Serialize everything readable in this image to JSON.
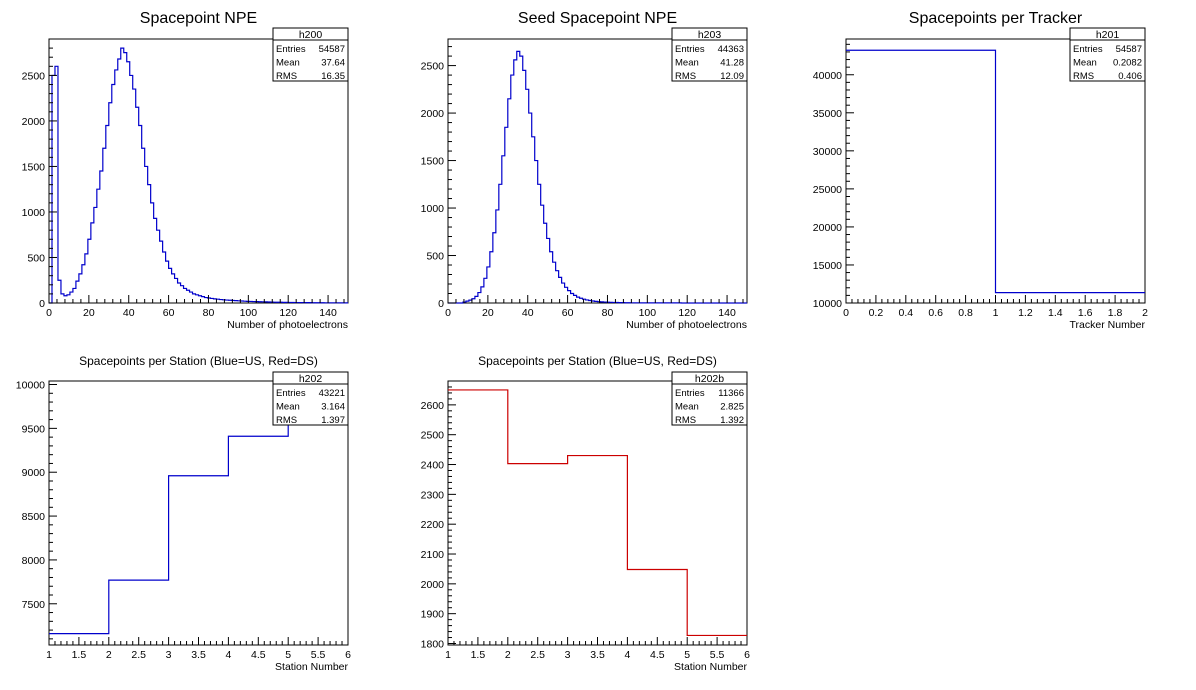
{
  "chart_data": [
    {
      "id": "h200",
      "type": "histogram",
      "title": "Spacepoint NPE",
      "xlabel": "Number of photoelectrons",
      "ylabel": "",
      "xlim": [
        0,
        150
      ],
      "ylim": [
        0,
        2900
      ],
      "xticks": [
        0,
        20,
        40,
        60,
        80,
        100,
        120,
        140
      ],
      "yticks": [
        0,
        500,
        1000,
        1500,
        2000,
        2500
      ],
      "bin_width": 1.5,
      "values": [
        0,
        2500,
        2600,
        250,
        100,
        80,
        90,
        120,
        160,
        240,
        320,
        420,
        540,
        700,
        880,
        1050,
        1250,
        1450,
        1700,
        1950,
        2200,
        2400,
        2560,
        2680,
        2800,
        2750,
        2650,
        2500,
        2350,
        2150,
        1950,
        1700,
        1500,
        1300,
        1100,
        930,
        800,
        680,
        560,
        460,
        380,
        320,
        270,
        220,
        190,
        160,
        140,
        120,
        100,
        90,
        80,
        70,
        60,
        55,
        50,
        45,
        42,
        38,
        35,
        32,
        30,
        28,
        26,
        24,
        22,
        20,
        18,
        17,
        16,
        15,
        14,
        13,
        12,
        11,
        10,
        9,
        8,
        8,
        7,
        7,
        6,
        6,
        5,
        5,
        5,
        4,
        4,
        4,
        3,
        3,
        3,
        3,
        2,
        2,
        2,
        2,
        2,
        2,
        1,
        1
      ],
      "color": "#0000cc",
      "grid": false,
      "stats": {
        "name": "h200",
        "rows": [
          [
            "Entries",
            "54587"
          ],
          [
            "Mean",
            "37.64"
          ],
          [
            "RMS",
            "16.35"
          ]
        ]
      }
    },
    {
      "id": "h203",
      "type": "histogram",
      "title": "Seed Spacepoint NPE",
      "xlabel": "Number of photoelectrons",
      "ylabel": "",
      "xlim": [
        0,
        150
      ],
      "ylim": [
        0,
        2780
      ],
      "xticks": [
        0,
        20,
        40,
        60,
        80,
        100,
        120,
        140
      ],
      "yticks": [
        0,
        500,
        1000,
        1500,
        2000,
        2500
      ],
      "bin_width": 1.5,
      "values": [
        0,
        0,
        0,
        0,
        0,
        10,
        20,
        30,
        45,
        70,
        110,
        170,
        260,
        380,
        540,
        740,
        980,
        1250,
        1550,
        1850,
        2150,
        2400,
        2560,
        2650,
        2600,
        2450,
        2250,
        2000,
        1750,
        1500,
        1250,
        1030,
        840,
        680,
        540,
        430,
        340,
        270,
        210,
        165,
        130,
        100,
        80,
        62,
        50,
        40,
        32,
        26,
        21,
        17,
        14,
        12,
        10,
        8,
        7,
        6,
        5,
        4,
        4,
        3,
        3,
        2,
        2,
        2,
        1,
        1,
        1,
        1,
        1,
        1,
        1,
        1,
        1,
        1,
        1,
        1,
        1,
        1,
        0,
        0,
        0,
        0,
        0,
        0,
        0,
        0,
        0,
        0,
        0,
        0,
        0,
        0,
        0,
        0,
        0,
        0,
        0,
        0,
        0,
        0
      ],
      "color": "#0000cc",
      "grid": false,
      "stats": {
        "name": "h203",
        "rows": [
          [
            "Entries",
            "44363"
          ],
          [
            "Mean",
            "41.28"
          ],
          [
            "RMS",
            "12.09"
          ]
        ]
      }
    },
    {
      "id": "h201",
      "type": "histogram",
      "title": "Spacepoints per Tracker",
      "xlabel": "Tracker Number",
      "ylabel": "",
      "xlim": [
        0,
        2
      ],
      "ylim": [
        10000,
        44700
      ],
      "xticks": [
        0,
        0.2,
        0.4,
        0.6,
        0.8,
        1,
        1.2,
        1.4,
        1.6,
        1.8,
        2
      ],
      "yticks": [
        10000,
        15000,
        20000,
        25000,
        30000,
        35000,
        40000
      ],
      "bin_width": 1,
      "values": [
        43221,
        11366
      ],
      "color": "#0000cc",
      "grid": false,
      "stats": {
        "name": "h201",
        "rows": [
          [
            "Entries",
            "54587"
          ],
          [
            "Mean",
            "0.2082"
          ],
          [
            "RMS",
            "0.406"
          ]
        ]
      }
    },
    {
      "id": "h202",
      "type": "histogram",
      "title": "Spacepoints per Station (Blue=US, Red=DS)",
      "xlabel": "Station Number",
      "ylabel": "",
      "xlim": [
        1,
        6
      ],
      "ylim": [
        7030,
        10040
      ],
      "xticks": [
        1,
        1.5,
        2,
        2.5,
        3,
        3.5,
        4,
        4.5,
        5,
        5.5,
        6
      ],
      "yticks": [
        7500,
        8000,
        8500,
        9000,
        9500,
        10000
      ],
      "bin_width": 1,
      "values": [
        7160,
        7770,
        8960,
        9410,
        9890
      ],
      "color": "#0000cc",
      "grid": false,
      "stats": {
        "name": "h202",
        "rows": [
          [
            "Entries",
            "43221"
          ],
          [
            "Mean",
            "3.164"
          ],
          [
            "RMS",
            "1.397"
          ]
        ]
      }
    },
    {
      "id": "h202b",
      "type": "histogram",
      "title": "Spacepoints per Station (Blue=US, Red=DS)",
      "xlabel": "Station Number",
      "ylabel": "",
      "xlim": [
        1,
        6
      ],
      "ylim": [
        1795,
        2680
      ],
      "xticks": [
        1,
        1.5,
        2,
        2.5,
        3,
        3.5,
        4,
        4.5,
        5,
        5.5,
        6
      ],
      "yticks": [
        1800,
        1900,
        2000,
        2100,
        2200,
        2300,
        2400,
        2500,
        2600
      ],
      "bin_width": 1,
      "values": [
        2650,
        2403,
        2430,
        2048,
        1827
      ],
      "color": "#cc0000",
      "grid": false,
      "stats": {
        "name": "h202b",
        "rows": [
          [
            "Entries",
            "11366"
          ],
          [
            "Mean",
            "2.825"
          ],
          [
            "RMS",
            "1.392"
          ]
        ]
      }
    }
  ]
}
